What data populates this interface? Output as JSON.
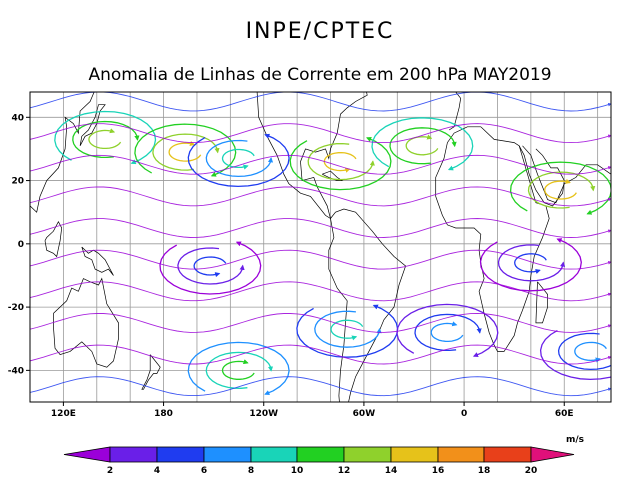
{
  "chart_data": {
    "type": "streamline",
    "header": "INPE/CPTEC",
    "title": "Anomalia de Linhas de Corrente em 200 hPa MAY2019",
    "x_axis": {
      "ticks": [
        {
          "value": 120,
          "label": "120E"
        },
        {
          "value": 180,
          "label": "180"
        },
        {
          "value": 240,
          "label": "120W"
        },
        {
          "value": 300,
          "label": "60W"
        },
        {
          "value": 360,
          "label": "0"
        },
        {
          "value": 420,
          "label": "60E"
        }
      ],
      "range": [
        100,
        448
      ]
    },
    "y_axis": {
      "ticks": [
        {
          "value": 40,
          "label": "40"
        },
        {
          "value": 20,
          "label": "20"
        },
        {
          "value": 0,
          "label": "0"
        },
        {
          "value": -20,
          "label": "-20"
        },
        {
          "value": -40,
          "label": "-40"
        }
      ],
      "range": [
        -50,
        48
      ]
    },
    "grid": true,
    "colorbar": {
      "unit": "m/s",
      "labels": [
        "2",
        "4",
        "6",
        "8",
        "10",
        "12",
        "14",
        "16",
        "18",
        "20"
      ],
      "colors": [
        "#9b00d9",
        "#6a1fe8",
        "#1f3cf0",
        "#1e90ff",
        "#19d4b8",
        "#22d022",
        "#8fd12c",
        "#e6c21a",
        "#f2901a",
        "#e8401a",
        "#e0107a"
      ]
    },
    "circulation_centers": [
      {
        "name": "anticyclone-north-pacific-west",
        "lon": 145,
        "lat": 33,
        "type": "anticyclonic",
        "speed_class": "10-14"
      },
      {
        "name": "anticyclone-north-pacific-central",
        "lon": 193,
        "lat": 29,
        "type": "anticyclonic",
        "speed_class": "12-16"
      },
      {
        "name": "cyclone-eastern-pacific",
        "lon": 225,
        "lat": 27,
        "type": "cyclonic",
        "speed_class": "6-10"
      },
      {
        "name": "cyclone-north-america",
        "lon": 286,
        "lat": 26,
        "type": "cyclonic",
        "speed_class": "10-18"
      },
      {
        "name": "anticyclone-north-atlantic",
        "lon": 335,
        "lat": 31,
        "type": "anticyclonic",
        "speed_class": "10-14"
      },
      {
        "name": "anticyclone-arabia",
        "lon": 418,
        "lat": 17,
        "type": "anticyclonic",
        "speed_class": "12-16"
      },
      {
        "name": "cyclone-central-pacific-south",
        "lon": 208,
        "lat": -7,
        "type": "cyclonic",
        "speed_class": "2-6"
      },
      {
        "name": "anticyclone-south-pacific",
        "lon": 225,
        "lat": -40,
        "type": "anticyclonic",
        "speed_class": "8-12"
      },
      {
        "name": "cyclone-south-pacific-east",
        "lon": 290,
        "lat": -27,
        "type": "cyclonic",
        "speed_class": "6-10"
      },
      {
        "name": "anticyclone-south-atlantic",
        "lon": 350,
        "lat": -28,
        "type": "anticyclonic",
        "speed_class": "4-8"
      },
      {
        "name": "cyclone-south-indian",
        "lon": 436,
        "lat": -34,
        "type": "cyclonic",
        "speed_class": "4-8"
      },
      {
        "name": "cyclone-south-africa",
        "lon": 400,
        "lat": -6,
        "type": "cyclonic",
        "speed_class": "2-6"
      }
    ]
  }
}
